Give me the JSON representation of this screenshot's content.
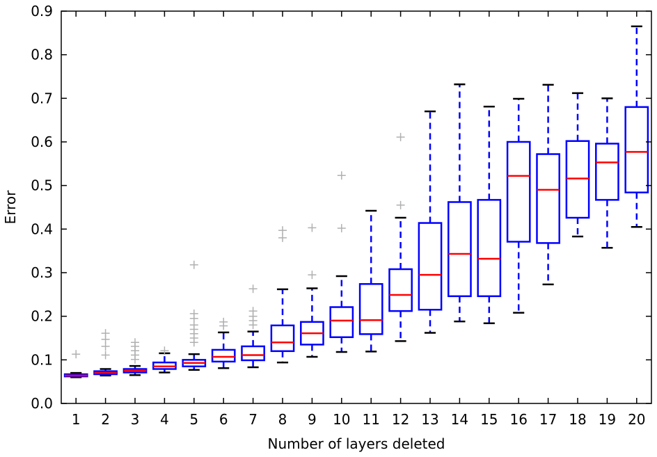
{
  "chart_data": {
    "type": "box",
    "xlabel": "Number of layers deleted",
    "ylabel": "Error",
    "ylim": [
      0.0,
      0.9
    ],
    "yticks": [
      "0.0",
      "0.1",
      "0.2",
      "0.3",
      "0.4",
      "0.5",
      "0.6",
      "0.7",
      "0.8",
      "0.9"
    ],
    "categories": [
      "1",
      "2",
      "3",
      "4",
      "5",
      "6",
      "7",
      "8",
      "9",
      "10",
      "11",
      "12",
      "13",
      "14",
      "15",
      "16",
      "17",
      "18",
      "19",
      "20"
    ],
    "grid": false,
    "colors": {
      "box": "#0000ff",
      "median": "#ff0000",
      "cap": "#000000",
      "outlier": "#b0b0b0"
    },
    "boxes": [
      {
        "x": "1",
        "whislo": 0.06,
        "q1": 0.062,
        "med": 0.064,
        "q3": 0.067,
        "whishi": 0.07,
        "fliers": [
          0.113
        ]
      },
      {
        "x": "2",
        "whislo": 0.064,
        "q1": 0.067,
        "med": 0.07,
        "q3": 0.074,
        "whishi": 0.079,
        "fliers": [
          0.111,
          0.131,
          0.147,
          0.161
        ]
      },
      {
        "x": "3",
        "whislo": 0.065,
        "q1": 0.071,
        "med": 0.075,
        "q3": 0.079,
        "whishi": 0.086,
        "fliers": [
          0.101,
          0.111,
          0.121,
          0.131,
          0.14
        ]
      },
      {
        "x": "4",
        "whislo": 0.071,
        "q1": 0.079,
        "med": 0.085,
        "q3": 0.094,
        "whishi": 0.115,
        "fliers": [
          0.121
        ]
      },
      {
        "x": "5",
        "whislo": 0.077,
        "q1": 0.085,
        "med": 0.093,
        "q3": 0.1,
        "whishi": 0.113,
        "fliers": [
          0.14,
          0.15,
          0.16,
          0.17,
          0.18,
          0.195,
          0.206,
          0.318
        ]
      },
      {
        "x": "6",
        "whislo": 0.081,
        "q1": 0.096,
        "med": 0.107,
        "q3": 0.123,
        "whishi": 0.163,
        "fliers": [
          0.178,
          0.187
        ]
      },
      {
        "x": "7",
        "whislo": 0.083,
        "q1": 0.099,
        "med": 0.111,
        "q3": 0.131,
        "whishi": 0.165,
        "fliers": [
          0.18,
          0.19,
          0.2,
          0.212,
          0.263
        ]
      },
      {
        "x": "8",
        "whislo": 0.094,
        "q1": 0.12,
        "med": 0.14,
        "q3": 0.179,
        "whishi": 0.262,
        "fliers": [
          0.38,
          0.397
        ]
      },
      {
        "x": "9",
        "whislo": 0.107,
        "q1": 0.135,
        "med": 0.161,
        "q3": 0.187,
        "whishi": 0.264,
        "fliers": [
          0.295,
          0.403
        ]
      },
      {
        "x": "10",
        "whislo": 0.118,
        "q1": 0.152,
        "med": 0.19,
        "q3": 0.221,
        "whishi": 0.292,
        "fliers": [
          0.402,
          0.523
        ]
      },
      {
        "x": "11",
        "whislo": 0.119,
        "q1": 0.159,
        "med": 0.191,
        "q3": 0.274,
        "whishi": 0.442,
        "fliers": []
      },
      {
        "x": "12",
        "whislo": 0.143,
        "q1": 0.212,
        "med": 0.249,
        "q3": 0.308,
        "whishi": 0.426,
        "fliers": [
          0.455,
          0.611
        ]
      },
      {
        "x": "13",
        "whislo": 0.162,
        "q1": 0.215,
        "med": 0.295,
        "q3": 0.414,
        "whishi": 0.67,
        "fliers": []
      },
      {
        "x": "14",
        "whislo": 0.188,
        "q1": 0.246,
        "med": 0.343,
        "q3": 0.462,
        "whishi": 0.732,
        "fliers": []
      },
      {
        "x": "15",
        "whislo": 0.184,
        "q1": 0.246,
        "med": 0.332,
        "q3": 0.467,
        "whishi": 0.681,
        "fliers": []
      },
      {
        "x": "16",
        "whislo": 0.208,
        "q1": 0.371,
        "med": 0.522,
        "q3": 0.6,
        "whishi": 0.699,
        "fliers": []
      },
      {
        "x": "17",
        "whislo": 0.273,
        "q1": 0.368,
        "med": 0.49,
        "q3": 0.572,
        "whishi": 0.731,
        "fliers": []
      },
      {
        "x": "18",
        "whislo": 0.383,
        "q1": 0.426,
        "med": 0.516,
        "q3": 0.602,
        "whishi": 0.712,
        "fliers": []
      },
      {
        "x": "19",
        "whislo": 0.357,
        "q1": 0.467,
        "med": 0.553,
        "q3": 0.596,
        "whishi": 0.7,
        "fliers": []
      },
      {
        "x": "20",
        "whislo": 0.405,
        "q1": 0.484,
        "med": 0.577,
        "q3": 0.68,
        "whishi": 0.865,
        "fliers": []
      }
    ]
  }
}
